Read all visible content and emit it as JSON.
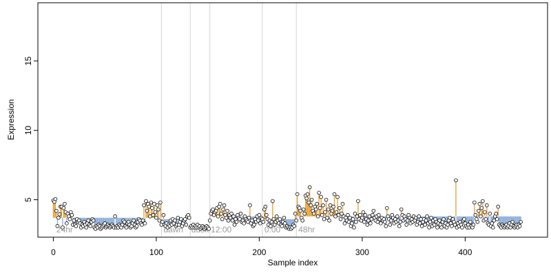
{
  "chart_data": {
    "type": "scatter",
    "title": "",
    "xlabel": "Sample index",
    "ylabel": "Expression",
    "xlim": [
      -15,
      480
    ],
    "ylim": [
      2.3,
      19.2
    ],
    "x_ticks": [
      0,
      100,
      200,
      300,
      400
    ],
    "y_ticks": [
      5,
      10,
      15
    ],
    "grid": false,
    "legend": "none",
    "colors": {
      "above_baseline": "#e8a33d",
      "below_baseline": "#8fb0dc",
      "point_fill": "#ffffff",
      "point_stroke": "#000000",
      "separator": "#d3d3d3",
      "section_label": "#9a9a9a"
    },
    "section_separators": [
      105,
      133,
      152,
      203,
      236
    ],
    "section_labels": [
      {
        "label": "24hr",
        "x": 3
      },
      {
        "label": "dawn",
        "x": 107
      },
      {
        "label": "dusk",
        "x": 134
      },
      {
        "label": "12:00",
        "x": 153
      },
      {
        "label": "0:00",
        "x": 205
      },
      {
        "label": "48hr",
        "x": 238
      }
    ],
    "segments": [
      {
        "start": 0,
        "end": 104,
        "baseline": 3.7
      },
      {
        "start": 105,
        "end": 132,
        "baseline": 3.6
      },
      {
        "start": 133,
        "end": 151,
        "baseline": 3.0
      },
      {
        "start": 152,
        "end": 202,
        "baseline": 3.8
      },
      {
        "start": 203,
        "end": 235,
        "baseline": 3.6
      },
      {
        "start": 236,
        "end": 460,
        "baseline": 3.8
      }
    ],
    "values": [
      4.95,
      4.85,
      5.05,
      4.2,
      3.1,
      3.7,
      3.95,
      4.5,
      4.5,
      3.0,
      4.4,
      4.7,
      4.1,
      3.3,
      4.0,
      3.8,
      3.6,
      4.1,
      3.9,
      3.2,
      3.5,
      3.2,
      3.1,
      3.6,
      3.4,
      3.5,
      3.3,
      3.0,
      3.2,
      3.1,
      3.4,
      3.2,
      3.0,
      3.3,
      3.5,
      3.2,
      3.1,
      3.4,
      3.6,
      3.5,
      3.0,
      2.9,
      3.1,
      3.0,
      3.2,
      3.1,
      2.9,
      3.0,
      3.1,
      3.2,
      3.3,
      3.0,
      3.1,
      3.2,
      3.1,
      3.0,
      3.1,
      3.2,
      3.1,
      3.0,
      3.8,
      3.0,
      3.1,
      3.0,
      3.2,
      3.1,
      3.0,
      3.2,
      3.5,
      3.4,
      3.1,
      3.0,
      3.3,
      3.4,
      3.2,
      3.0,
      3.1,
      3.3,
      3.5,
      3.2,
      3.0,
      3.1,
      3.4,
      3.6,
      3.5,
      3.3,
      3.2,
      3.5,
      4.6,
      3.3,
      4.9,
      4.2,
      4.7,
      4.5,
      3.8,
      4.8,
      4.4,
      3.9,
      4.7,
      4.1,
      3.7,
      4.6,
      4.3,
      3.5,
      4.8,
      3.2,
      3.4,
      3.9,
      3.2,
      3.1,
      3.3,
      3.0,
      3.2,
      3.1,
      3.5,
      3.2,
      3.6,
      3.3,
      3.5,
      3.1,
      3.2,
      3.7,
      3.2,
      3.4,
      3.6,
      3.1,
      3.3,
      3.5,
      3.6,
      3.2,
      3.8,
      3.9,
      3.7,
      3.0,
      3.1,
      3.0,
      3.2,
      3.0,
      3.1,
      3.0,
      3.2,
      3.0,
      3.1,
      2.9,
      3.0,
      3.1,
      3.0,
      2.9,
      3.0,
      3.1,
      3.0,
      2.9,
      3.5,
      4.0,
      4.2,
      4.3,
      3.9,
      4.1,
      4.2,
      4.4,
      3.8,
      4.5,
      4.7,
      4.0,
      3.6,
      4.3,
      4.6,
      3.9,
      3.7,
      4.2,
      3.5,
      3.9,
      3.7,
      4.0,
      3.5,
      3.8,
      3.2,
      3.6,
      3.4,
      3.9,
      3.7,
      3.6,
      4.0,
      3.4,
      3.5,
      3.3,
      3.8,
      3.6,
      3.5,
      3.4,
      3.7,
      4.6,
      3.3,
      3.5,
      3.1,
      3.2,
      3.6,
      3.4,
      3.8,
      3.5,
      3.9,
      3.3,
      3.7,
      3.6,
      3.4,
      4.3,
      4.5,
      3.9,
      3.6,
      3.2,
      3.5,
      3.1,
      3.4,
      4.9,
      3.6,
      3.2,
      3.4,
      3.8,
      3.5,
      3.3,
      3.6,
      3.2,
      3.1,
      3.4,
      3.7,
      3.3,
      3.0,
      3.1,
      3.0,
      2.9,
      3.0,
      2.9,
      3.0,
      3.2,
      3.1,
      4.0,
      3.5,
      5.4,
      4.5,
      4.4,
      4.2,
      3.7,
      3.5,
      4.3,
      4.0,
      5.3,
      5.1,
      5.4,
      4.8,
      5.9,
      4.6,
      5.0,
      4.2,
      4.0,
      4.5,
      4.3,
      4.7,
      3.8,
      5.5,
      4.4,
      5.2,
      3.9,
      4.6,
      3.6,
      4.1,
      5.0,
      3.7,
      4.3,
      3.5,
      4.6,
      4.0,
      4.2,
      4.5,
      5.4,
      3.8,
      4.1,
      5.2,
      3.9,
      4.4,
      3.6,
      4.0,
      4.7,
      3.8,
      3.3,
      3.7,
      3.5,
      3.9,
      3.4,
      3.7,
      3.1,
      3.3,
      3.6,
      3.0,
      4.0,
      3.4,
      3.8,
      4.9,
      3.6,
      3.9,
      3.5,
      3.7,
      4.1,
      3.4,
      3.9,
      3.6,
      3.2,
      3.5,
      3.8,
      3.3,
      3.6,
      3.9,
      4.2,
      3.7,
      3.5,
      3.8,
      3.4,
      3.9,
      3.6,
      3.3,
      3.7,
      3.5,
      3.6,
      3.4,
      3.1,
      4.4,
      3.8,
      3.6,
      3.2,
      3.5,
      3.9,
      3.7,
      3.3,
      3.6,
      3.4,
      3.8,
      3.5,
      3.1,
      3.4,
      4.3,
      3.9,
      3.5,
      3.8,
      3.6,
      3.2,
      3.5,
      3.9,
      3.7,
      3.3,
      3.6,
      3.4,
      3.8,
      3.5,
      3.7,
      3.2,
      3.4,
      3.8,
      3.3,
      3.6,
      3.1,
      3.4,
      3.6,
      3.2,
      3.5,
      3.8,
      3.3,
      3.0,
      3.4,
      3.7,
      3.1,
      3.5,
      3.2,
      3.6,
      3.4,
      3.0,
      3.3,
      3.5,
      3.2,
      3.0,
      3.4,
      3.6,
      3.1,
      3.3,
      3.0,
      3.2,
      3.5,
      3.7,
      3.3,
      3.1,
      3.6,
      3.4,
      3.2,
      6.4,
      3.0,
      3.3,
      3.1,
      3.4,
      3.2,
      3.0,
      3.5,
      3.6,
      3.3,
      3.1,
      3.0,
      3.2,
      3.0,
      3.4,
      3.1,
      3.0,
      3.2,
      4.8,
      3.9,
      3.6,
      3.4,
      4.2,
      4.7,
      3.8,
      4.4,
      4.9,
      3.5,
      4.1,
      3.6,
      4.6,
      3.3,
      3.2,
      4.0,
      3.1,
      3.3,
      3.0,
      3.5,
      3.8,
      4.0,
      3.6,
      4.5,
      3.2,
      3.1,
      3.0,
      3.2,
      3.1,
      3.0,
      3.1,
      3.2,
      3.0,
      3.1,
      3.3,
      3.0,
      3.2,
      3.4,
      3.1,
      3.0,
      3.1,
      3.2,
      3.0,
      3.2,
      3.1,
      3.4
    ]
  }
}
